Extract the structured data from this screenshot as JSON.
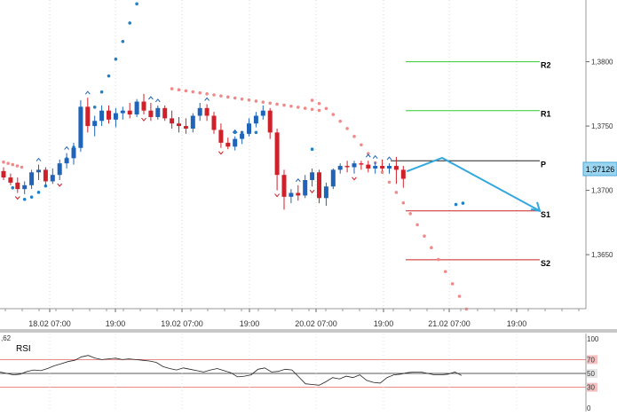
{
  "chart_data": [
    {
      "type": "candlestick",
      "instrument_price_label": "1,37126",
      "y_ticks": [
        "1,3800",
        "1,3750",
        "1,3700",
        "1,3650"
      ],
      "y_tick_values": [
        1.38,
        1.375,
        1.37,
        1.365
      ],
      "ylim": [
        1.3608,
        1.3848
      ],
      "x_ticks": [
        "18.02 07:00",
        "19:00",
        "19.02 07:00",
        "19:00",
        "20.02 07:00",
        "19:00",
        "21.02 07:00",
        "19:00"
      ],
      "pivot_levels": [
        {
          "label": "R2",
          "value": 1.38,
          "color": "#33cc33"
        },
        {
          "label": "R1",
          "value": 1.3762,
          "color": "#33cc33"
        },
        {
          "label": "P",
          "value": 1.3723,
          "color": "#222222"
        },
        {
          "label": "S1",
          "value": 1.3684,
          "color": "#cc2222"
        },
        {
          "label": "S2",
          "value": 1.3646,
          "color": "#cc2222"
        }
      ],
      "ohlc": [
        [
          1.3715,
          1.3718,
          1.3708,
          1.371
        ],
        [
          1.371,
          1.3713,
          1.3704,
          1.3706
        ],
        [
          1.3706,
          1.371,
          1.3698,
          1.3701
        ],
        [
          1.3701,
          1.3707,
          1.3697,
          1.3704
        ],
        [
          1.3704,
          1.3716,
          1.3701,
          1.3714
        ],
        [
          1.3714,
          1.372,
          1.3708,
          1.3716
        ],
        [
          1.3716,
          1.3718,
          1.3703,
          1.3707
        ],
        [
          1.3707,
          1.3717,
          1.3705,
          1.3712
        ],
        [
          1.3712,
          1.3724,
          1.3708,
          1.3721
        ],
        [
          1.3721,
          1.3729,
          1.3717,
          1.3725
        ],
        [
          1.3725,
          1.3737,
          1.372,
          1.3733
        ],
        [
          1.3733,
          1.377,
          1.373,
          1.3765
        ],
        [
          1.3765,
          1.3772,
          1.3745,
          1.375
        ],
        [
          1.375,
          1.3758,
          1.3742,
          1.3754
        ],
        [
          1.3754,
          1.3766,
          1.375,
          1.3762
        ],
        [
          1.3762,
          1.3766,
          1.3752,
          1.3755
        ],
        [
          1.3755,
          1.3764,
          1.3749,
          1.376
        ],
        [
          1.376,
          1.3765,
          1.3755,
          1.3762
        ],
        [
          1.3762,
          1.3768,
          1.3756,
          1.3759
        ],
        [
          1.3759,
          1.3771,
          1.3757,
          1.3769
        ],
        [
          1.3769,
          1.3775,
          1.3759,
          1.3762
        ],
        [
          1.3762,
          1.3768,
          1.3754,
          1.3757
        ],
        [
          1.3757,
          1.3766,
          1.3755,
          1.3764
        ],
        [
          1.3764,
          1.3766,
          1.3754,
          1.3756
        ],
        [
          1.3756,
          1.3762,
          1.3748,
          1.3752
        ],
        [
          1.3752,
          1.3757,
          1.3745,
          1.375
        ],
        [
          1.375,
          1.3756,
          1.3744,
          1.3748
        ],
        [
          1.3748,
          1.376,
          1.3745,
          1.3758
        ],
        [
          1.3758,
          1.3768,
          1.3754,
          1.3764
        ],
        [
          1.3764,
          1.3767,
          1.3754,
          1.3758
        ],
        [
          1.3758,
          1.3761,
          1.3744,
          1.3747
        ],
        [
          1.3747,
          1.3752,
          1.3733,
          1.3737
        ],
        [
          1.3737,
          1.3741,
          1.3732,
          1.3734
        ],
        [
          1.3734,
          1.3742,
          1.3731,
          1.374
        ],
        [
          1.374,
          1.3746,
          1.3736,
          1.3744
        ],
        [
          1.3744,
          1.3756,
          1.3742,
          1.3752
        ],
        [
          1.3752,
          1.3761,
          1.3749,
          1.3758
        ],
        [
          1.3758,
          1.3766,
          1.3755,
          1.3762
        ],
        [
          1.3762,
          1.3764,
          1.374,
          1.3745
        ],
        [
          1.3745,
          1.3748,
          1.37,
          1.3712
        ],
        [
          1.3712,
          1.3716,
          1.3685,
          1.3695
        ],
        [
          1.3695,
          1.3701,
          1.369,
          1.3698
        ],
        [
          1.3698,
          1.3704,
          1.3692,
          1.3696
        ],
        [
          1.3696,
          1.3712,
          1.3694,
          1.3708
        ],
        [
          1.3708,
          1.3717,
          1.3703,
          1.3714
        ],
        [
          1.3714,
          1.3716,
          1.369,
          1.3694
        ],
        [
          1.3694,
          1.3706,
          1.3688,
          1.3703
        ],
        [
          1.3703,
          1.3717,
          1.3701,
          1.3716
        ],
        [
          1.3716,
          1.3721,
          1.3713,
          1.3719
        ],
        [
          1.3719,
          1.3723,
          1.3714,
          1.3718
        ],
        [
          1.3718,
          1.3723,
          1.3713,
          1.3721
        ],
        [
          1.3721,
          1.3723,
          1.3716,
          1.372
        ],
        [
          1.372,
          1.3723,
          1.3714,
          1.3717
        ],
        [
          1.3717,
          1.3722,
          1.3713,
          1.3719
        ],
        [
          1.3719,
          1.3724,
          1.3715,
          1.3717
        ],
        [
          1.3717,
          1.3721,
          1.3713,
          1.3719
        ],
        [
          1.3719,
          1.3726,
          1.3705,
          1.3716
        ],
        [
          1.3716,
          1.3719,
          1.3702,
          1.3709
        ]
      ],
      "projection": {
        "label": "",
        "from": [
          57,
          1.3712
        ],
        "via": [
          60,
          1.3717
        ],
        "to": [
          68,
          1.3684
        ],
        "color": "#33a8dd"
      },
      "indicator": "parabolic SAR"
    },
    {
      "type": "line",
      "name": "RSI",
      "y_ticks": [
        "100",
        "70",
        "50",
        "30",
        "0"
      ],
      "levels": [
        70,
        50,
        30
      ],
      "ylim": [
        0,
        100
      ],
      "partial_label": ",62",
      "values": [
        52,
        50,
        48,
        49,
        53,
        55,
        54,
        57,
        61,
        64,
        67,
        69,
        74,
        76,
        72,
        70,
        71,
        72,
        70,
        71,
        70,
        69,
        68,
        66,
        60,
        57,
        55,
        58,
        56,
        54,
        52,
        55,
        57,
        54,
        51,
        45,
        46,
        48,
        56,
        58,
        52,
        53,
        56,
        55,
        45,
        35,
        34,
        33,
        38,
        44,
        42,
        46,
        44,
        48,
        40,
        37,
        36,
        44,
        48,
        49,
        51,
        52,
        52,
        50,
        48,
        48,
        49,
        52,
        47
      ]
    }
  ]
}
